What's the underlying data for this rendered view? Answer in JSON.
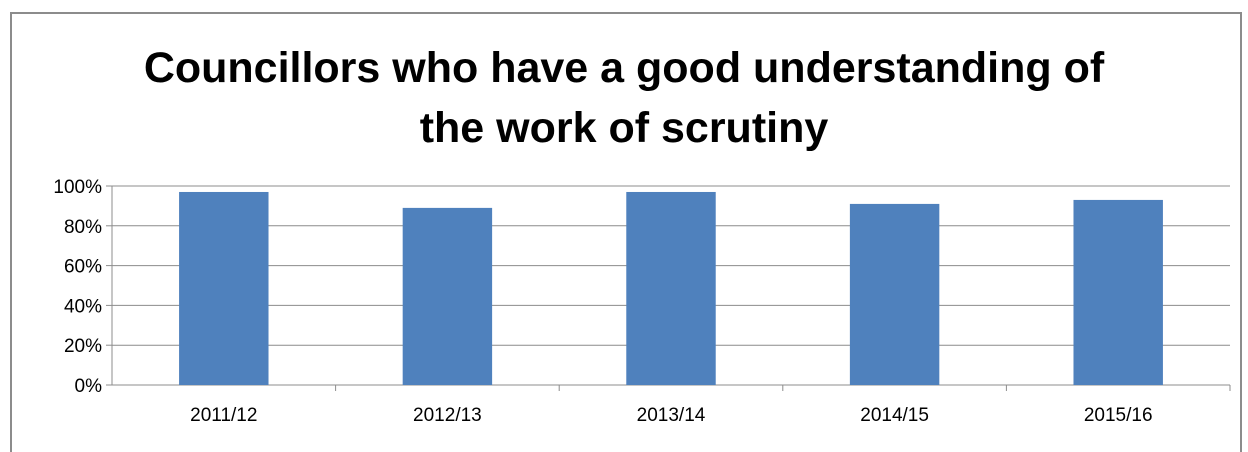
{
  "chart_data": {
    "type": "bar",
    "title_lines": [
      "Councillors who have a good understanding of",
      "the work of scrutiny"
    ],
    "categories": [
      "2011/12",
      "2012/13",
      "2013/14",
      "2014/15",
      "2015/16"
    ],
    "values": [
      97,
      89,
      97,
      91,
      93
    ],
    "ylim": [
      0,
      100
    ],
    "yticks": [
      "0%",
      "20%",
      "40%",
      "60%",
      "80%",
      "100%"
    ],
    "grid": true,
    "legend": "none",
    "bar_color": "#4f81bd",
    "grid_color": "#8c8c8c"
  }
}
